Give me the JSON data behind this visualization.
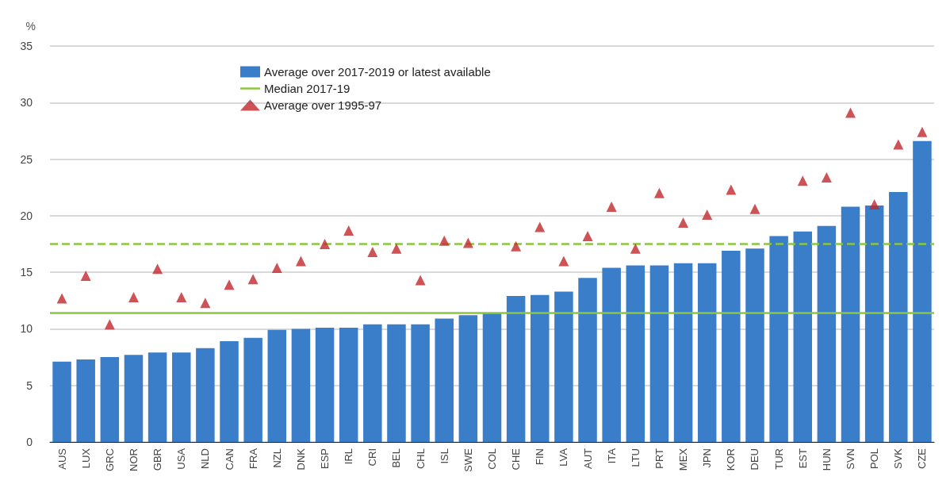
{
  "chart_data": {
    "type": "bar",
    "ylabel": "%",
    "categories": [
      "AUS",
      "LUX",
      "GRC",
      "NOR",
      "GBR",
      "USA",
      "NLD",
      "CAN",
      "FRA",
      "NZL",
      "DNK",
      "ESP",
      "IRL",
      "CRI",
      "BEL",
      "CHL",
      "ISL",
      "SWE",
      "COL",
      "CHE",
      "FIN",
      "LVA",
      "AUT",
      "ITA",
      "LTU",
      "PRT",
      "MEX",
      "JPN",
      "KOR",
      "DEU",
      "TUR",
      "EST",
      "HUN",
      "SVN",
      "POL",
      "SVK",
      "CZE"
    ],
    "series": [
      {
        "name": "Average over 2017-2019 or latest available",
        "color": "#3a7dc9",
        "values": [
          7.1,
          7.3,
          7.5,
          7.7,
          7.9,
          7.9,
          8.3,
          8.9,
          9.2,
          9.9,
          10.0,
          10.1,
          10.1,
          10.4,
          10.4,
          10.4,
          10.9,
          11.2,
          11.4,
          12.9,
          13.0,
          13.3,
          14.5,
          15.4,
          15.6,
          15.6,
          15.8,
          15.8,
          16.9,
          17.1,
          18.2,
          18.6,
          19.1,
          20.8,
          20.9,
          22.1,
          26.6
        ]
      },
      {
        "name": "Average over 1995-97",
        "type": "scatter",
        "marker": "triangle",
        "color": "#c0282d",
        "values": [
          12.7,
          14.7,
          10.4,
          12.8,
          15.3,
          12.8,
          12.3,
          13.9,
          14.4,
          15.4,
          16.0,
          17.5,
          18.7,
          16.8,
          17.1,
          14.3,
          17.8,
          17.6,
          null,
          17.3,
          19.0,
          16.0,
          18.2,
          20.8,
          17.1,
          22.0,
          19.4,
          20.1,
          22.3,
          20.6,
          null,
          23.1,
          23.4,
          29.1,
          21.0,
          26.3,
          27.4
        ]
      }
    ],
    "ref_lines": [
      {
        "axis": "y",
        "value": 11.4,
        "label": "Median 2017-19",
        "color": "#8cc63f",
        "line_style": "solid"
      },
      {
        "axis": "y",
        "value": 17.5,
        "label": null,
        "color": "#8cc63f",
        "line_style": "dashed"
      }
    ],
    "ylim": [
      0,
      35
    ],
    "yticks": [
      0,
      5,
      10,
      15,
      20,
      25,
      30,
      35
    ],
    "grid": "y",
    "legend": "top"
  }
}
